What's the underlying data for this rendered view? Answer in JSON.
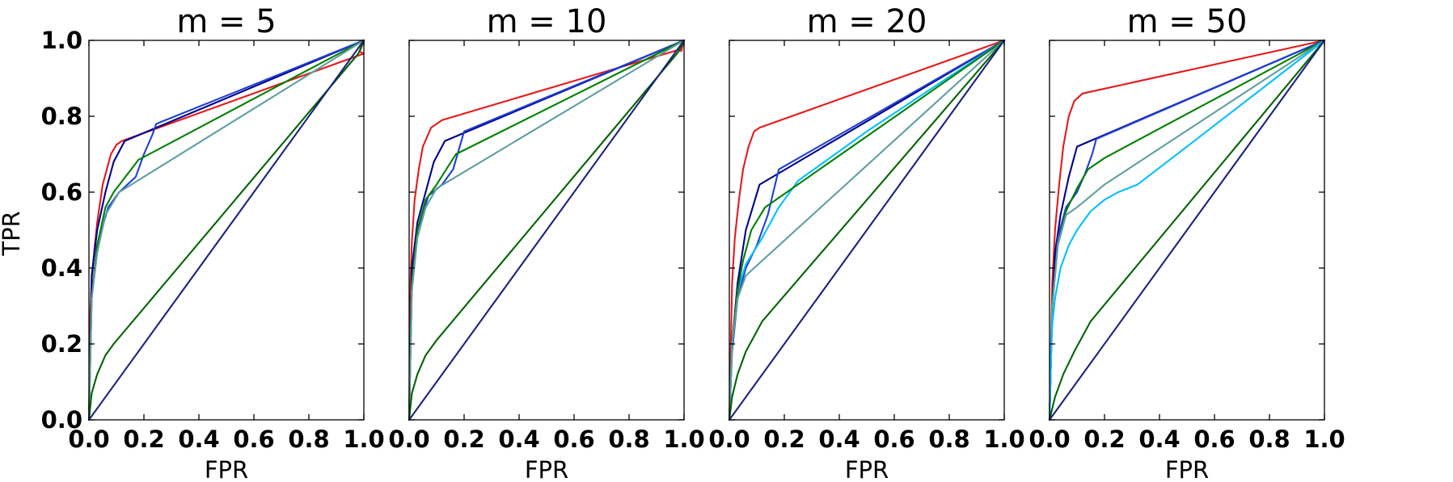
{
  "figure": {
    "ylabel": "TPR",
    "xlabel": "FPR"
  },
  "chart_data": [
    {
      "type": "line",
      "title": "m = 5",
      "xlabel": "FPR",
      "ylabel": "TPR",
      "xlim": [
        0,
        1
      ],
      "ylim": [
        0,
        1
      ],
      "xticks": [
        "0.0",
        "0.2",
        "0.4",
        "0.6",
        "0.8",
        "1.0"
      ],
      "yticks": [
        "0.0",
        "0.2",
        "0.4",
        "0.6",
        "0.8",
        "1.0"
      ],
      "grid": false,
      "series": [
        {
          "color": "#e41a1c",
          "x": [
            0,
            0.005,
            0.01,
            0.02,
            0.03,
            0.05,
            0.08,
            0.1,
            0.12,
            1.0,
            0.985,
            1.0
          ],
          "y": [
            0,
            0.28,
            0.37,
            0.45,
            0.52,
            0.62,
            0.7,
            0.725,
            0.735,
            0.965,
            0.97,
            1.0
          ]
        },
        {
          "color": "#00008b",
          "x": [
            0,
            0.01,
            0.03,
            0.06,
            0.09,
            0.13,
            1.0
          ],
          "y": [
            0,
            0.38,
            0.5,
            0.6,
            0.68,
            0.735,
            1.0
          ]
        },
        {
          "color": "#1f3fd6",
          "x": [
            0,
            0.01,
            0.03,
            0.07,
            0.11,
            0.17,
            0.2,
            0.23,
            0.245,
            1.0
          ],
          "y": [
            0,
            0.32,
            0.46,
            0.56,
            0.6,
            0.64,
            0.7,
            0.75,
            0.78,
            1.0
          ]
        },
        {
          "color": "#008000",
          "x": [
            0,
            0.01,
            0.03,
            0.06,
            0.09,
            0.18,
            1.0
          ],
          "y": [
            0,
            0.32,
            0.46,
            0.56,
            0.6,
            0.685,
            1.0
          ]
        },
        {
          "color": "#5f9ea0",
          "x": [
            0,
            0.01,
            0.03,
            0.06,
            0.11,
            1.0
          ],
          "y": [
            0,
            0.32,
            0.44,
            0.54,
            0.6,
            1.0
          ]
        },
        {
          "color": "#006400",
          "x": [
            0,
            0.01,
            0.03,
            0.06,
            0.09,
            0.98,
            1.0
          ],
          "y": [
            0,
            0.07,
            0.12,
            0.17,
            0.2,
            0.965,
            1.0
          ]
        },
        {
          "color": "#1a237e",
          "x": [
            0,
            1.0
          ],
          "y": [
            0,
            1.0
          ]
        }
      ]
    },
    {
      "type": "line",
      "title": "m = 10",
      "xlabel": "FPR",
      "ylabel": "TPR",
      "xlim": [
        0,
        1
      ],
      "ylim": [
        0,
        1
      ],
      "xticks": [
        "0.0",
        "0.2",
        "0.4",
        "0.6",
        "0.8",
        "1.0"
      ],
      "yticks": [
        "0.0",
        "0.2",
        "0.4",
        "0.6",
        "0.8",
        "1.0"
      ],
      "grid": false,
      "series": [
        {
          "color": "#e41a1c",
          "x": [
            0,
            0.005,
            0.01,
            0.02,
            0.035,
            0.05,
            0.08,
            0.12,
            0.98,
            0.99,
            1.0
          ],
          "y": [
            0,
            0.36,
            0.47,
            0.58,
            0.66,
            0.72,
            0.77,
            0.79,
            0.975,
            0.972,
            1.0
          ]
        },
        {
          "color": "#00008b",
          "x": [
            0,
            0.01,
            0.03,
            0.06,
            0.09,
            0.13,
            1.0
          ],
          "y": [
            0,
            0.4,
            0.52,
            0.6,
            0.68,
            0.735,
            1.0
          ]
        },
        {
          "color": "#1f3fd6",
          "x": [
            0,
            0.01,
            0.03,
            0.07,
            0.12,
            0.16,
            0.2,
            1.0
          ],
          "y": [
            0,
            0.36,
            0.5,
            0.59,
            0.62,
            0.66,
            0.76,
            1.0
          ]
        },
        {
          "color": "#008000",
          "x": [
            0,
            0.01,
            0.03,
            0.06,
            0.1,
            0.17,
            1.0
          ],
          "y": [
            0,
            0.36,
            0.5,
            0.58,
            0.62,
            0.7,
            1.0
          ]
        },
        {
          "color": "#5f9ea0",
          "x": [
            0,
            0.01,
            0.03,
            0.06,
            0.1,
            1.0
          ],
          "y": [
            0,
            0.34,
            0.48,
            0.56,
            0.61,
            1.0
          ]
        },
        {
          "color": "#006400",
          "x": [
            0,
            0.01,
            0.03,
            0.06,
            0.1,
            0.98,
            1.0
          ],
          "y": [
            0,
            0.07,
            0.12,
            0.17,
            0.21,
            0.97,
            1.0
          ]
        },
        {
          "color": "#1a237e",
          "x": [
            0,
            1.0
          ],
          "y": [
            0,
            1.0
          ]
        }
      ]
    },
    {
      "type": "line",
      "title": "m = 20",
      "xlabel": "FPR",
      "ylabel": "TPR",
      "xlim": [
        0,
        1
      ],
      "ylim": [
        0,
        1
      ],
      "xticks": [
        "0.0",
        "0.2",
        "0.4",
        "0.6",
        "0.8",
        "1.0"
      ],
      "yticks": [
        "0.0",
        "0.2",
        "0.4",
        "0.6",
        "0.8",
        "1.0"
      ],
      "grid": false,
      "series": [
        {
          "color": "#e41a1c",
          "x": [
            0,
            0.01,
            0.02,
            0.035,
            0.05,
            0.07,
            0.09,
            0.11,
            1.0
          ],
          "y": [
            0,
            0.36,
            0.48,
            0.58,
            0.66,
            0.72,
            0.76,
            0.77,
            1.0
          ]
        },
        {
          "color": "#00008b",
          "x": [
            0,
            0.01,
            0.03,
            0.06,
            0.11,
            1.0
          ],
          "y": [
            0,
            0.2,
            0.36,
            0.5,
            0.62,
            1.0
          ]
        },
        {
          "color": "#1f3fd6",
          "x": [
            0,
            0.01,
            0.03,
            0.06,
            0.1,
            0.14,
            0.18,
            1.0
          ],
          "y": [
            0,
            0.18,
            0.32,
            0.4,
            0.46,
            0.54,
            0.66,
            1.0
          ]
        },
        {
          "color": "#00bfff",
          "x": [
            0,
            0.01,
            0.03,
            0.06,
            0.12,
            0.18,
            0.25,
            0.5,
            1.0
          ],
          "y": [
            0,
            0.2,
            0.34,
            0.41,
            0.48,
            0.56,
            0.63,
            0.76,
            1.0
          ]
        },
        {
          "color": "#008000",
          "x": [
            0,
            0.01,
            0.03,
            0.05,
            0.08,
            0.13,
            0.17,
            1.0
          ],
          "y": [
            0,
            0.2,
            0.34,
            0.42,
            0.5,
            0.56,
            0.58,
            1.0
          ]
        },
        {
          "color": "#5f9ea0",
          "x": [
            0,
            0.01,
            0.03,
            0.06,
            0.09,
            1.0
          ],
          "y": [
            0,
            0.2,
            0.32,
            0.38,
            0.4,
            1.0
          ]
        },
        {
          "color": "#006400",
          "x": [
            0,
            0.01,
            0.03,
            0.06,
            0.12,
            1.0
          ],
          "y": [
            0,
            0.06,
            0.12,
            0.18,
            0.26,
            1.0
          ]
        },
        {
          "color": "#1a237e",
          "x": [
            0,
            1.0
          ],
          "y": [
            0,
            1.0
          ]
        }
      ]
    },
    {
      "type": "line",
      "title": "m = 50",
      "xlabel": "FPR",
      "ylabel": "TPR",
      "xlim": [
        0,
        1
      ],
      "ylim": [
        0,
        1
      ],
      "xticks": [
        "0.0",
        "0.2",
        "0.4",
        "0.6",
        "0.8",
        "1.0"
      ],
      "yticks": [
        "0.0",
        "0.2",
        "0.4",
        "0.6",
        "0.8",
        "1.0"
      ],
      "grid": false,
      "series": [
        {
          "color": "#e41a1c",
          "x": [
            0,
            0.01,
            0.02,
            0.035,
            0.05,
            0.07,
            0.09,
            0.12,
            1.0
          ],
          "y": [
            0,
            0.36,
            0.5,
            0.62,
            0.72,
            0.8,
            0.84,
            0.86,
            1.0
          ]
        },
        {
          "color": "#00008b",
          "x": [
            0,
            0.01,
            0.02,
            0.04,
            0.07,
            0.1,
            1.0
          ],
          "y": [
            0,
            0.3,
            0.44,
            0.54,
            0.64,
            0.72,
            1.0
          ]
        },
        {
          "color": "#1f3fd6",
          "x": [
            0,
            0.01,
            0.03,
            0.06,
            0.1,
            0.13,
            0.155,
            0.17,
            1.0
          ],
          "y": [
            0,
            0.3,
            0.48,
            0.56,
            0.6,
            0.65,
            0.7,
            0.74,
            1.0
          ]
        },
        {
          "color": "#008000",
          "x": [
            0,
            0.01,
            0.03,
            0.06,
            0.1,
            0.14,
            0.2,
            1.0
          ],
          "y": [
            0,
            0.3,
            0.46,
            0.55,
            0.61,
            0.66,
            0.69,
            1.0
          ]
        },
        {
          "color": "#5f9ea0",
          "x": [
            0,
            0.01,
            0.03,
            0.06,
            0.1,
            0.2,
            1.0
          ],
          "y": [
            0,
            0.3,
            0.46,
            0.54,
            0.56,
            0.62,
            1.0
          ]
        },
        {
          "color": "#00bfff",
          "x": [
            0,
            0.005,
            0.01,
            0.02,
            0.04,
            0.07,
            0.1,
            0.15,
            0.2,
            0.25,
            0.32,
            0.5,
            1.0
          ],
          "y": [
            0,
            0.16,
            0.25,
            0.32,
            0.4,
            0.46,
            0.5,
            0.55,
            0.58,
            0.6,
            0.62,
            0.72,
            1.0
          ]
        },
        {
          "color": "#006400",
          "x": [
            0,
            0.02,
            0.05,
            0.09,
            0.15,
            1.0
          ],
          "y": [
            0,
            0.06,
            0.12,
            0.18,
            0.26,
            1.0
          ]
        },
        {
          "color": "#1a237e",
          "x": [
            0,
            1.0
          ],
          "y": [
            0,
            1.0
          ]
        }
      ]
    }
  ]
}
